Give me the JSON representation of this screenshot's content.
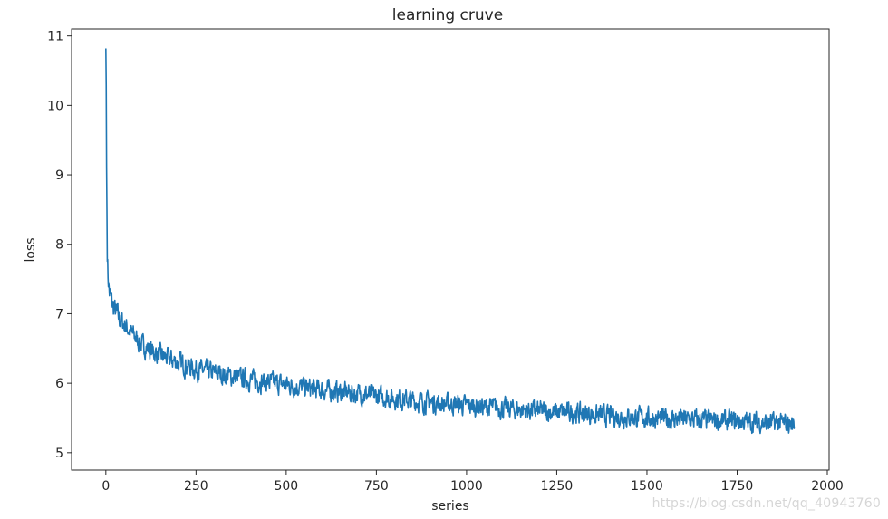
{
  "chart_data": {
    "type": "line",
    "title": "learning cruve",
    "xlabel": "series",
    "ylabel": "loss",
    "xlim": [
      -95,
      2005
    ],
    "ylim": [
      4.75,
      11.1
    ],
    "xticks": [
      0,
      250,
      500,
      750,
      1000,
      1250,
      1500,
      1750,
      2000
    ],
    "yticks": [
      5,
      6,
      7,
      8,
      9,
      10,
      11
    ],
    "grid": false,
    "line_color": "#1f77b4",
    "n_points": 1910,
    "series": [
      {
        "x": [
          0,
          1,
          2,
          4,
          6,
          10,
          20,
          35,
          50,
          75,
          100,
          150,
          200,
          250,
          300,
          400,
          500,
          600,
          700,
          800,
          900,
          1000,
          1100,
          1200,
          1300,
          1400,
          1500,
          1600,
          1700,
          1800,
          1850,
          1900,
          1910
        ],
        "values": [
          10.82,
          10.3,
          9.1,
          7.9,
          7.55,
          7.3,
          7.1,
          6.95,
          6.85,
          6.7,
          6.55,
          6.4,
          6.3,
          6.2,
          6.15,
          6.05,
          5.98,
          5.9,
          5.85,
          5.78,
          5.72,
          5.68,
          5.64,
          5.6,
          5.57,
          5.53,
          5.5,
          5.48,
          5.46,
          5.44,
          5.43,
          5.41,
          5.42
        ],
        "noise_amplitude": 0.22
      }
    ]
  },
  "watermark": "https://blog.csdn.net/qq_40943760"
}
